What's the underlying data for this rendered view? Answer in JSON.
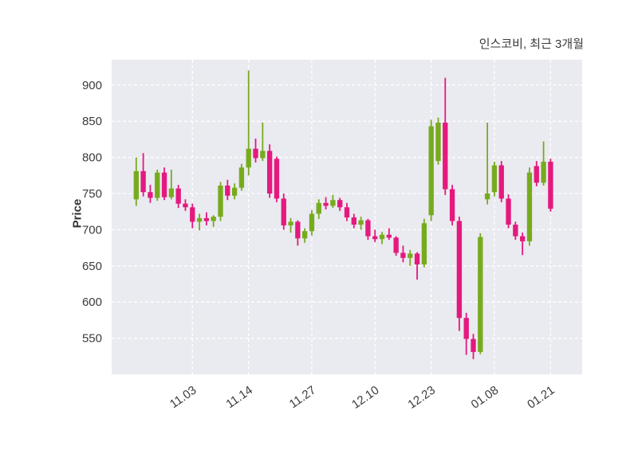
{
  "chart_data": {
    "type": "candlestick",
    "title": "인스코비, 최근 3개월",
    "ylabel": "Price",
    "ylim": [
      500,
      935
    ],
    "yticks": [
      550,
      600,
      650,
      700,
      750,
      800,
      850,
      900
    ],
    "xticks": [
      {
        "index": 8,
        "label": "11.03"
      },
      {
        "index": 16,
        "label": "11.14"
      },
      {
        "index": 25,
        "label": "11.27"
      },
      {
        "index": 34,
        "label": "12.10"
      },
      {
        "index": 42,
        "label": "12.23"
      },
      {
        "index": 51,
        "label": "01.08"
      },
      {
        "index": 59,
        "label": "01.21"
      }
    ],
    "grid": true,
    "colors": {
      "up": "#77ab1e",
      "down": "#e4197e",
      "plot_bg": "#eaeaf1",
      "grid_line": "#ffffff",
      "tick_label": "#3b3b3b",
      "title": "#3a3a3a"
    },
    "candles": [
      [
        742,
        800,
        733,
        781
      ],
      [
        781,
        806,
        746,
        752
      ],
      [
        752,
        762,
        737,
        744
      ],
      [
        744,
        783,
        740,
        779
      ],
      [
        779,
        786,
        741,
        745
      ],
      [
        745,
        783,
        742,
        757
      ],
      [
        757,
        762,
        730,
        736
      ],
      [
        736,
        742,
        726,
        731
      ],
      [
        731,
        736,
        702,
        711
      ],
      [
        711,
        722,
        699,
        716
      ],
      [
        716,
        724,
        706,
        712
      ],
      [
        712,
        720,
        704,
        718
      ],
      [
        718,
        766,
        712,
        761
      ],
      [
        761,
        769,
        741,
        747
      ],
      [
        747,
        764,
        742,
        758
      ],
      [
        758,
        791,
        754,
        786
      ],
      [
        786,
        920,
        775,
        812
      ],
      [
        812,
        826,
        793,
        799
      ],
      [
        799,
        848,
        795,
        809
      ],
      [
        809,
        818,
        744,
        750
      ],
      [
        798,
        801,
        738,
        743
      ],
      [
        743,
        750,
        700,
        706
      ],
      [
        706,
        716,
        696,
        711
      ],
      [
        711,
        713,
        678,
        688
      ],
      [
        688,
        702,
        682,
        698
      ],
      [
        698,
        727,
        692,
        722
      ],
      [
        722,
        742,
        715,
        737
      ],
      [
        737,
        745,
        728,
        733
      ],
      [
        733,
        748,
        730,
        741
      ],
      [
        741,
        744,
        726,
        731
      ],
      [
        731,
        737,
        712,
        717
      ],
      [
        717,
        722,
        702,
        707
      ],
      [
        707,
        718,
        700,
        713
      ],
      [
        713,
        715,
        686,
        691
      ],
      [
        691,
        700,
        683,
        687
      ],
      [
        687,
        697,
        680,
        693
      ],
      [
        693,
        702,
        686,
        689
      ],
      [
        689,
        691,
        664,
        668
      ],
      [
        668,
        678,
        655,
        661
      ],
      [
        661,
        672,
        650,
        667
      ],
      [
        667,
        669,
        631,
        652
      ],
      [
        652,
        715,
        648,
        709
      ],
      [
        720,
        852,
        712,
        843
      ],
      [
        795,
        855,
        790,
        848
      ],
      [
        848,
        910,
        748,
        756
      ],
      [
        756,
        762,
        706,
        712
      ],
      [
        712,
        718,
        560,
        578
      ],
      [
        578,
        585,
        527,
        549
      ],
      [
        549,
        556,
        521,
        531
      ],
      [
        531,
        695,
        528,
        690
      ],
      [
        742,
        848,
        735,
        750
      ],
      [
        752,
        794,
        746,
        789
      ],
      [
        789,
        795,
        738,
        743
      ],
      [
        743,
        749,
        702,
        707
      ],
      [
        707,
        711,
        686,
        691
      ],
      [
        691,
        696,
        665,
        684
      ],
      [
        684,
        786,
        678,
        779
      ],
      [
        788,
        795,
        760,
        765
      ],
      [
        765,
        822,
        761,
        794
      ],
      [
        794,
        798,
        725,
        729
      ]
    ]
  }
}
